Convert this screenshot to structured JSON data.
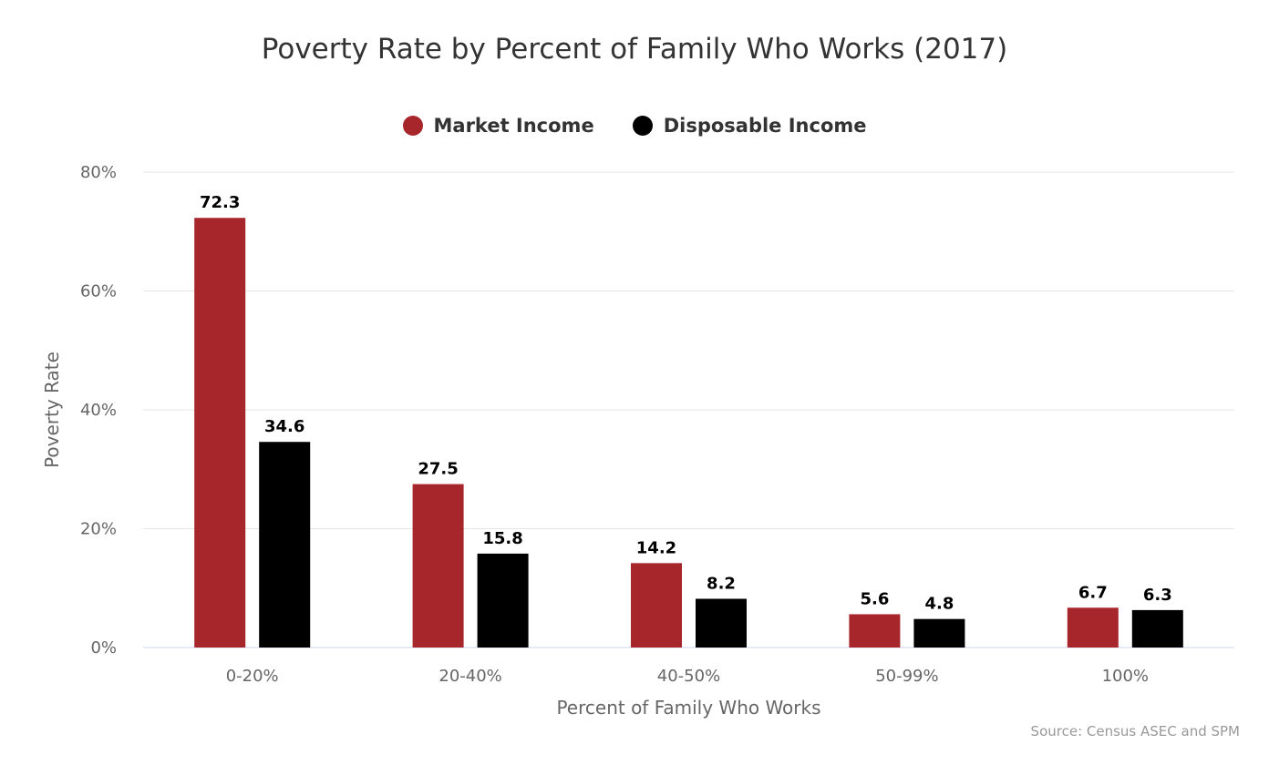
{
  "chart_data": {
    "type": "bar",
    "title": "Poverty Rate by Percent of Family Who Works (2017)",
    "xlabel": "Percent of Family Who Works",
    "ylabel": "Poverty Rate",
    "categories": [
      "0-20%",
      "20-40%",
      "40-50%",
      "50-99%",
      "100%"
    ],
    "series": [
      {
        "name": "Market Income",
        "color": "#a6262b",
        "values": [
          72.3,
          27.5,
          14.2,
          5.6,
          6.7
        ],
        "labels": [
          "72.3",
          "27.5",
          "14.2",
          "5.6",
          "6.7"
        ]
      },
      {
        "name": "Disposable Income",
        "color": "#000000",
        "values": [
          34.6,
          15.8,
          8.2,
          4.8,
          6.3
        ],
        "labels": [
          "34.6",
          "15.8",
          "8.2",
          "4.8",
          "6.3"
        ]
      }
    ],
    "ylim": [
      0,
      80
    ],
    "yticks": [
      "0%",
      "20%",
      "40%",
      "60%",
      "80%"
    ],
    "grid": true,
    "legend": "top-center",
    "source": "Source: Census ASEC and SPM"
  }
}
